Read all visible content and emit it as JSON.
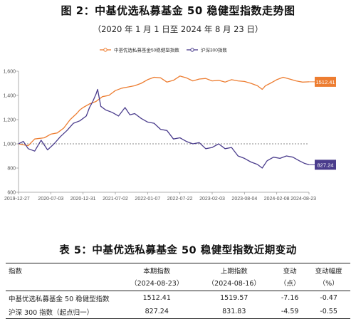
{
  "figure": {
    "title": "图 2：中基优选私募基金 50 稳健型指数走势图",
    "subtitle": "（2020 年 1 月 1 日至 2024 年 8 月 23 日）"
  },
  "chart_data": {
    "type": "line",
    "x_ticks": [
      "2019-12-27",
      "2020-07-03",
      "2020-12-31",
      "2021-07-02",
      "2022-01-07",
      "2022-07-22",
      "2023-02-03",
      "2023-08-04",
      "2024-02-08",
      "2024-08-23"
    ],
    "y_ticks": [
      600,
      800,
      1000,
      1200,
      1400,
      1600
    ],
    "ylim": [
      600,
      1600
    ],
    "reference_line": 1000,
    "grid": false,
    "legend_position": "top-center",
    "series": [
      {
        "name": "中基优选私募基金50稳健型指数",
        "color": "#ED7D31",
        "end_label": "1512.41",
        "points": [
          [
            0,
            1000
          ],
          [
            0.3,
            985
          ],
          [
            0.5,
            1040
          ],
          [
            0.8,
            1050
          ],
          [
            1.0,
            1080
          ],
          [
            1.2,
            1090
          ],
          [
            1.4,
            1130
          ],
          [
            1.6,
            1200
          ],
          [
            1.8,
            1250
          ],
          [
            1.9,
            1280
          ],
          [
            2.0,
            1300
          ],
          [
            2.2,
            1330
          ],
          [
            2.4,
            1350
          ],
          [
            2.6,
            1390
          ],
          [
            2.8,
            1400
          ],
          [
            3.0,
            1440
          ],
          [
            3.2,
            1460
          ],
          [
            3.4,
            1470
          ],
          [
            3.6,
            1480
          ],
          [
            3.8,
            1500
          ],
          [
            4.0,
            1530
          ],
          [
            4.2,
            1550
          ],
          [
            4.4,
            1545
          ],
          [
            4.6,
            1510
          ],
          [
            4.8,
            1525
          ],
          [
            5.0,
            1560
          ],
          [
            5.2,
            1545
          ],
          [
            5.4,
            1520
          ],
          [
            5.6,
            1535
          ],
          [
            5.8,
            1540
          ],
          [
            6.0,
            1520
          ],
          [
            6.2,
            1525
          ],
          [
            6.4,
            1510
          ],
          [
            6.6,
            1530
          ],
          [
            6.8,
            1520
          ],
          [
            7.0,
            1515
          ],
          [
            7.2,
            1500
          ],
          [
            7.4,
            1480
          ],
          [
            7.55,
            1450
          ],
          [
            7.65,
            1480
          ],
          [
            7.8,
            1500
          ],
          [
            8.0,
            1530
          ],
          [
            8.2,
            1550
          ],
          [
            8.4,
            1535
          ],
          [
            8.6,
            1520
          ],
          [
            8.8,
            1510
          ],
          [
            9.0,
            1512.41
          ]
        ]
      },
      {
        "name": "沪深300指数",
        "color": "#4A3C8C",
        "end_label": "827.24",
        "points": [
          [
            0,
            1000
          ],
          [
            0.15,
            1020
          ],
          [
            0.3,
            960
          ],
          [
            0.5,
            940
          ],
          [
            0.7,
            1030
          ],
          [
            0.9,
            950
          ],
          [
            1.1,
            1000
          ],
          [
            1.3,
            1060
          ],
          [
            1.5,
            1110
          ],
          [
            1.7,
            1170
          ],
          [
            1.9,
            1190
          ],
          [
            2.1,
            1230
          ],
          [
            2.2,
            1300
          ],
          [
            2.3,
            1350
          ],
          [
            2.4,
            1410
          ],
          [
            2.45,
            1450
          ],
          [
            2.55,
            1310
          ],
          [
            2.7,
            1280
          ],
          [
            2.9,
            1260
          ],
          [
            3.1,
            1230
          ],
          [
            3.3,
            1300
          ],
          [
            3.45,
            1240
          ],
          [
            3.6,
            1250
          ],
          [
            3.8,
            1210
          ],
          [
            4.0,
            1180
          ],
          [
            4.2,
            1170
          ],
          [
            4.4,
            1120
          ],
          [
            4.6,
            1110
          ],
          [
            4.8,
            1040
          ],
          [
            5.0,
            1050
          ],
          [
            5.2,
            1020
          ],
          [
            5.4,
            1000
          ],
          [
            5.6,
            1010
          ],
          [
            5.8,
            960
          ],
          [
            6.0,
            970
          ],
          [
            6.2,
            1000
          ],
          [
            6.4,
            960
          ],
          [
            6.6,
            970
          ],
          [
            6.8,
            900
          ],
          [
            7.0,
            880
          ],
          [
            7.2,
            850
          ],
          [
            7.4,
            830
          ],
          [
            7.55,
            800
          ],
          [
            7.7,
            860
          ],
          [
            7.9,
            890
          ],
          [
            8.1,
            880
          ],
          [
            8.3,
            900
          ],
          [
            8.5,
            890
          ],
          [
            8.7,
            860
          ],
          [
            8.85,
            840
          ],
          [
            9.0,
            827.24
          ]
        ]
      }
    ]
  },
  "table": {
    "title": "表 5：中基优选私募基金 50 稳健型指数近期变动",
    "headers": [
      "指数",
      "本期指数",
      "上期指数",
      "变动",
      "变动幅度"
    ],
    "subheaders": [
      "",
      "（2024-08-23）",
      "（2024-08-16）",
      "（点）",
      "（%）"
    ],
    "rows": [
      [
        "中基优选私募基金 50 稳健型指数",
        "1512.41",
        "1519.57",
        "-7.16",
        "-0.47"
      ],
      [
        "沪深 300 指数（起点归一）",
        "827.24",
        "831.83",
        "-4.59",
        "-0.55"
      ]
    ]
  }
}
